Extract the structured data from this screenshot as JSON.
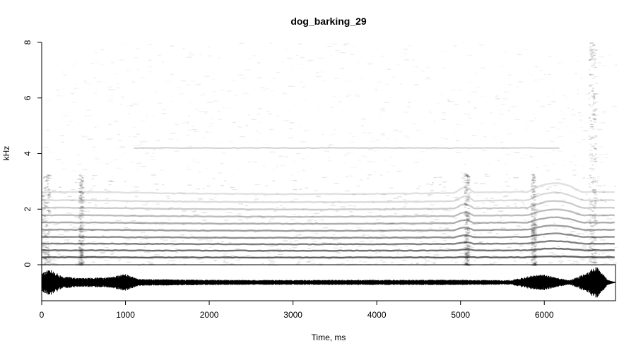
{
  "chart_data": {
    "type": "spectrogram",
    "title": "dog_barking_29",
    "xlabel": "Time, ms",
    "ylabel": "kHz",
    "xlim": [
      0,
      6850
    ],
    "ylim": [
      0,
      8
    ],
    "x_ticks": [
      0,
      1000,
      2000,
      3000,
      4000,
      5000,
      6000
    ],
    "y_ticks": [
      0,
      2,
      4,
      6,
      8
    ],
    "colors": {
      "ink": "#000000",
      "background": "#ffffff"
    },
    "bark_onsets_ms": [
      0,
      450,
      5050,
      5850,
      6550
    ],
    "harmonic_bands_khz": [
      0.27,
      0.52,
      0.76,
      1.0,
      1.26,
      1.52,
      1.78,
      2.05,
      2.32,
      2.62,
      4.2
    ],
    "oscillogram_envelope": [
      {
        "t": 0,
        "amp": 0.55
      },
      {
        "t": 100,
        "amp": 0.75
      },
      {
        "t": 250,
        "amp": 0.35
      },
      {
        "t": 450,
        "amp": 0.25
      },
      {
        "t": 800,
        "amp": 0.3
      },
      {
        "t": 1000,
        "amp": 0.5
      },
      {
        "t": 1150,
        "amp": 0.2
      },
      {
        "t": 2000,
        "amp": 0.15
      },
      {
        "t": 3000,
        "amp": 0.14
      },
      {
        "t": 4000,
        "amp": 0.15
      },
      {
        "t": 5000,
        "amp": 0.15
      },
      {
        "t": 5600,
        "amp": 0.13
      },
      {
        "t": 5850,
        "amp": 0.4
      },
      {
        "t": 6000,
        "amp": 0.45
      },
      {
        "t": 6300,
        "amp": 0.12
      },
      {
        "t": 6500,
        "amp": 0.55
      },
      {
        "t": 6620,
        "amp": 0.95
      },
      {
        "t": 6760,
        "amp": 0.15
      },
      {
        "t": 6850,
        "amp": 0.02
      }
    ]
  }
}
